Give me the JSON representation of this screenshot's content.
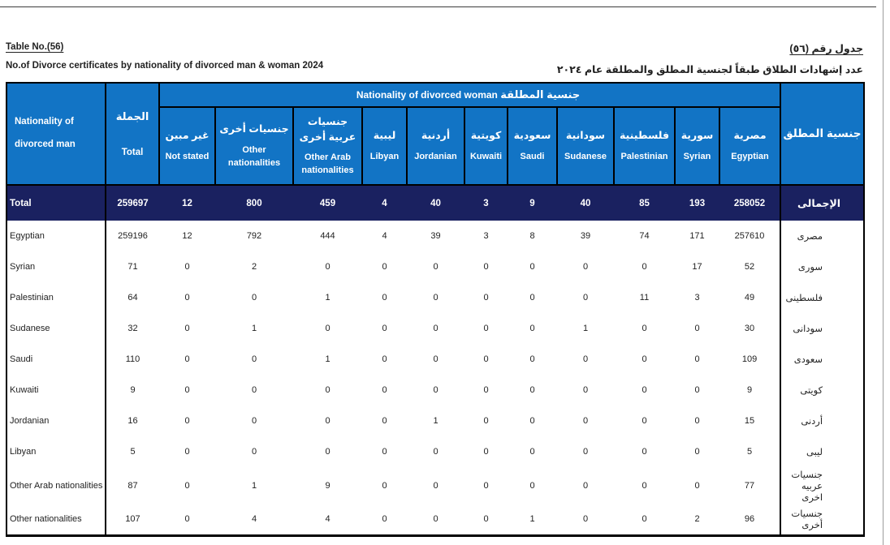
{
  "page": {
    "table_no_en": "Table  No.(56)",
    "table_no_ar": "جدول رقم (٥٦)",
    "title_en": "No.of  Divorce certificates by nationality of divorced man & woman 2024",
    "title_ar": "عدد إشهادات الطلاق طبقاً لجنسية المطلق والمطلقة عام  ٢٠٢٤"
  },
  "colors": {
    "header_blue": "#1274C5",
    "total_navy": "#1A2160"
  },
  "table": {
    "corner_en": "Nationality of divorced man",
    "total_col_ar": "الجملة",
    "total_col_en": "Total",
    "band_en": "Nationality of divorced  woman",
    "band_ar": "جنسية المطلقة",
    "man_col_ar": "جنسية المطلق",
    "columns": [
      {
        "ar": "غير مبين",
        "en": "Not stated"
      },
      {
        "ar": "جنسيات أخرى",
        "en": "Other nationalities"
      },
      {
        "ar": "جنسيات عربية أخرى",
        "en": "Other Arab nationalities"
      },
      {
        "ar": "ليبية",
        "en": "Libyan"
      },
      {
        "ar": "أردنية",
        "en": "Jordanian"
      },
      {
        "ar": "كويتية",
        "en": "Kuwaiti"
      },
      {
        "ar": "سعودية",
        "en": "Saudi"
      },
      {
        "ar": "سودانية",
        "en": "Sudanese"
      },
      {
        "ar": "فلسطينية",
        "en": "Palestinian"
      },
      {
        "ar": "سورية",
        "en": "Syrian"
      },
      {
        "ar": "مصرية",
        "en": "Egyptian"
      }
    ],
    "total_row": {
      "label_en": "Total",
      "label_ar": "الإجمالى",
      "total": "259697",
      "values": [
        "12",
        "800",
        "459",
        "4",
        "40",
        "3",
        "9",
        "40",
        "85",
        "193",
        "258052"
      ]
    },
    "rows": [
      {
        "en": "Egyptian",
        "ar": "مصرى",
        "total": "259196",
        "values": [
          "12",
          "792",
          "444",
          "4",
          "39",
          "3",
          "8",
          "39",
          "74",
          "171",
          "257610"
        ]
      },
      {
        "en": "Syrian",
        "ar": "سورى",
        "total": "71",
        "values": [
          "0",
          "2",
          "0",
          "0",
          "0",
          "0",
          "0",
          "0",
          "0",
          "17",
          "52"
        ]
      },
      {
        "en": "Palestinian",
        "ar": "فلسطينى",
        "total": "64",
        "values": [
          "0",
          "0",
          "1",
          "0",
          "0",
          "0",
          "0",
          "0",
          "11",
          "3",
          "49"
        ]
      },
      {
        "en": "Sudanese",
        "ar": "سودانى",
        "total": "32",
        "values": [
          "0",
          "1",
          "0",
          "0",
          "0",
          "0",
          "0",
          "1",
          "0",
          "0",
          "30"
        ]
      },
      {
        "en": "Saudi",
        "ar": "سعودى",
        "total": "110",
        "values": [
          "0",
          "0",
          "1",
          "0",
          "0",
          "0",
          "0",
          "0",
          "0",
          "0",
          "109"
        ]
      },
      {
        "en": "Kuwaiti",
        "ar": "كويتى",
        "total": "9",
        "values": [
          "0",
          "0",
          "0",
          "0",
          "0",
          "0",
          "0",
          "0",
          "0",
          "0",
          "9"
        ]
      },
      {
        "en": "Jordanian",
        "ar": "أردنى",
        "total": "16",
        "values": [
          "0",
          "0",
          "0",
          "0",
          "1",
          "0",
          "0",
          "0",
          "0",
          "0",
          "15"
        ]
      },
      {
        "en": "Libyan",
        "ar": "ليبى",
        "total": "5",
        "values": [
          "0",
          "0",
          "0",
          "0",
          "0",
          "0",
          "0",
          "0",
          "0",
          "0",
          "5"
        ]
      },
      {
        "en": "Other Arab nationalities",
        "ar": "جنسيات عربيه اخرى",
        "total": "87",
        "values": [
          "0",
          "1",
          "9",
          "0",
          "0",
          "0",
          "0",
          "0",
          "0",
          "0",
          "77"
        ]
      },
      {
        "en": "Other nationalities",
        "ar": "جنسيات أخرى",
        "total": "107",
        "values": [
          "0",
          "4",
          "4",
          "0",
          "0",
          "0",
          "1",
          "0",
          "0",
          "2",
          "96"
        ]
      }
    ]
  }
}
